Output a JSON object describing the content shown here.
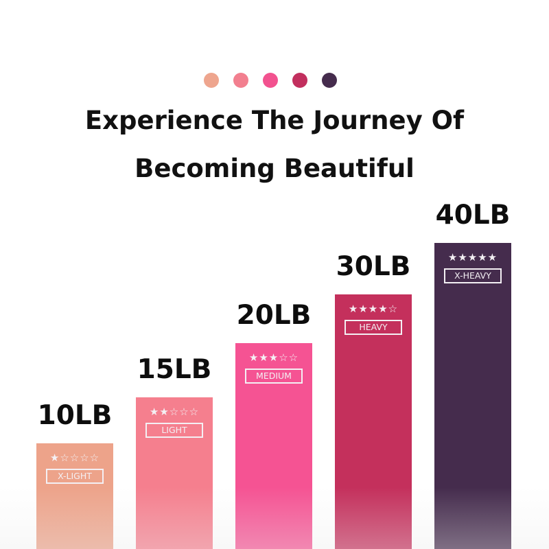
{
  "header": {
    "title_line1": "Experience The Journey Of",
    "title_line2": "Becoming Beautiful",
    "dot_colors": [
      "#EEA58E",
      "#F27F8F",
      "#F2528F",
      "#C22F5E",
      "#452C4D"
    ]
  },
  "chart_data": {
    "type": "bar",
    "categories": [
      "X-LIGHT",
      "LIGHT",
      "MEDIUM",
      "HEAVY",
      "X-HEAVY"
    ],
    "values": [
      10,
      15,
      20,
      30,
      40
    ],
    "value_labels": [
      "10LB",
      "15LB",
      "20LB",
      "30LB",
      "40LB"
    ],
    "ratings": [
      1,
      2,
      3,
      4,
      5
    ],
    "rating_max": 5,
    "colors": [
      "#EDA38A",
      "#F57F8E",
      "#F55393",
      "#C4305C",
      "#452C4D"
    ],
    "title": "Experience The Journey Of Becoming Beautiful",
    "xlabel": "",
    "ylabel": "",
    "grid": false
  }
}
